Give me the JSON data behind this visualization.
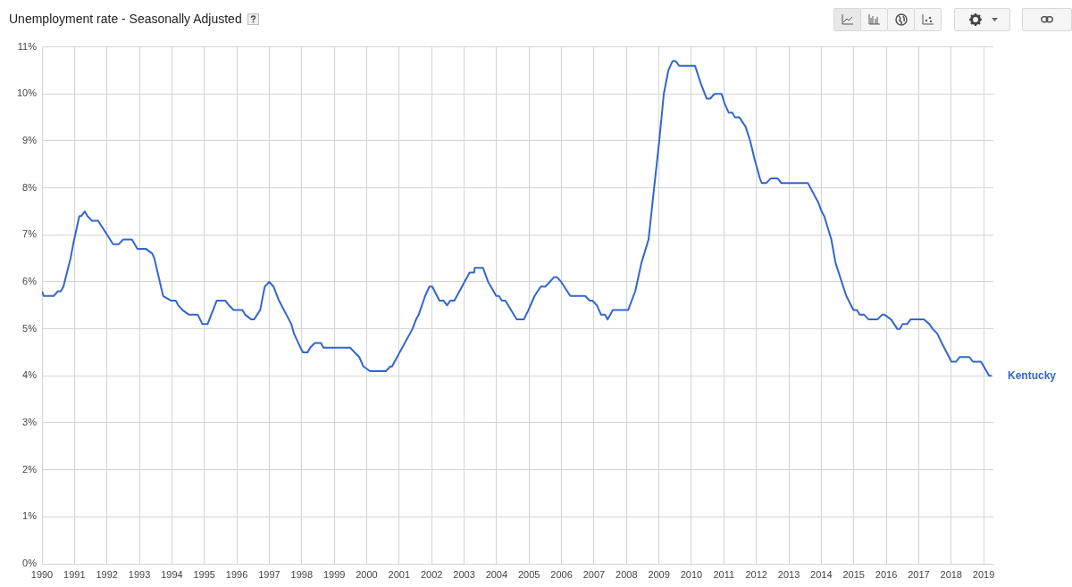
{
  "chart_data": {
    "type": "line",
    "title": "Unemployment rate - Seasonally Adjusted",
    "xlim": [
      1990,
      2019.3
    ],
    "xticks": [
      1990,
      1991,
      1992,
      1993,
      1994,
      1995,
      1996,
      1997,
      1998,
      1999,
      2000,
      2001,
      2002,
      2003,
      2004,
      2005,
      2006,
      2007,
      2008,
      2009,
      2010,
      2011,
      2012,
      2013,
      2014,
      2015,
      2016,
      2017,
      2018,
      2019
    ],
    "ylim": [
      0,
      11
    ],
    "yticks": [
      {
        "value": 0,
        "label": "0%"
      },
      {
        "value": 1,
        "label": "1%"
      },
      {
        "value": 2,
        "label": "2%"
      },
      {
        "value": 3,
        "label": "3%"
      },
      {
        "value": 4,
        "label": "4%"
      },
      {
        "value": 5,
        "label": "5%"
      },
      {
        "value": 6,
        "label": "6%"
      },
      {
        "value": 7,
        "label": "7%"
      },
      {
        "value": 8,
        "label": "8%"
      },
      {
        "value": 9,
        "label": "9%"
      },
      {
        "value": 10,
        "label": "10%"
      },
      {
        "value": 11,
        "label": "11%"
      }
    ],
    "grid": true,
    "marker": "none",
    "line_style": "solid",
    "series": [
      {
        "name": "Kentucky",
        "color": "#3366cc",
        "x": [
          1990.0,
          1990.05,
          1990.36,
          1990.49,
          1990.58,
          1990.66,
          1990.88,
          1990.96,
          1991.15,
          1991.21,
          1991.32,
          1991.4,
          1991.54,
          1991.73,
          1992.19,
          1992.36,
          1992.5,
          1992.77,
          1992.94,
          1993.21,
          1993.4,
          1993.46,
          1993.73,
          1993.98,
          1994.12,
          1994.2,
          1994.33,
          1994.53,
          1994.8,
          1994.94,
          1995.1,
          1995.38,
          1995.65,
          1995.76,
          1995.9,
          1996.17,
          1996.26,
          1996.45,
          1996.53,
          1996.72,
          1996.86,
          1997.0,
          1997.13,
          1997.3,
          1997.68,
          1997.76,
          1997.96,
          1998.04,
          1998.18,
          1998.26,
          1998.4,
          1998.59,
          1998.67,
          1999.49,
          1999.63,
          1999.77,
          1999.9,
          2000.1,
          2000.59,
          2000.73,
          2000.78,
          2001.41,
          2001.52,
          2001.6,
          2001.8,
          2001.93,
          2002.02,
          2002.24,
          2002.37,
          2002.48,
          2002.57,
          2002.7,
          2003.17,
          2003.31,
          2003.33,
          2003.58,
          2003.74,
          2003.99,
          2004.07,
          2004.16,
          2004.27,
          2004.62,
          2004.84,
          2004.98,
          2005.17,
          2005.36,
          2005.5,
          2005.64,
          2005.77,
          2005.86,
          2005.99,
          2006.27,
          2006.73,
          2006.87,
          2006.95,
          2007.09,
          2007.22,
          2007.34,
          2007.42,
          2007.58,
          2008.05,
          2008.27,
          2008.46,
          2008.68,
          2008.82,
          2009.01,
          2009.15,
          2009.29,
          2009.42,
          2009.51,
          2009.62,
          2010.11,
          2010.3,
          2010.47,
          2010.58,
          2010.71,
          2010.93,
          2011.02,
          2011.15,
          2011.26,
          2011.34,
          2011.48,
          2011.67,
          2011.81,
          2011.95,
          2012.11,
          2012.17,
          2012.3,
          2012.44,
          2012.66,
          2012.77,
          2013.59,
          2013.9,
          2014.01,
          2014.09,
          2014.31,
          2014.44,
          2014.77,
          2014.99,
          2015.1,
          2015.18,
          2015.32,
          2015.46,
          2015.73,
          2015.87,
          2015.95,
          2016.15,
          2016.34,
          2016.42,
          2016.5,
          2016.64,
          2016.75,
          2017.16,
          2017.33,
          2017.43,
          2017.57,
          2017.71,
          2018.01,
          2018.15,
          2018.26,
          2018.56,
          2018.67,
          2018.92,
          2019.17,
          2019.25
        ],
        "values": [
          5.8,
          5.7,
          5.7,
          5.8,
          5.8,
          5.9,
          6.5,
          6.8,
          7.4,
          7.4,
          7.5,
          7.4,
          7.3,
          7.3,
          6.8,
          6.8,
          6.9,
          6.9,
          6.7,
          6.7,
          6.6,
          6.5,
          5.7,
          5.6,
          5.6,
          5.5,
          5.4,
          5.3,
          5.3,
          5.1,
          5.1,
          5.6,
          5.6,
          5.5,
          5.4,
          5.4,
          5.3,
          5.2,
          5.2,
          5.4,
          5.9,
          6.0,
          5.9,
          5.6,
          5.1,
          4.9,
          4.6,
          4.5,
          4.5,
          4.6,
          4.7,
          4.7,
          4.6,
          4.6,
          4.5,
          4.4,
          4.2,
          4.1,
          4.1,
          4.2,
          4.2,
          5.0,
          5.2,
          5.3,
          5.7,
          5.9,
          5.9,
          5.6,
          5.6,
          5.5,
          5.6,
          5.6,
          6.2,
          6.2,
          6.3,
          6.3,
          6.0,
          5.7,
          5.7,
          5.6,
          5.6,
          5.2,
          5.2,
          5.4,
          5.7,
          5.9,
          5.9,
          6.0,
          6.1,
          6.1,
          6.0,
          5.7,
          5.7,
          5.6,
          5.6,
          5.5,
          5.3,
          5.3,
          5.2,
          5.4,
          5.4,
          5.8,
          6.4,
          6.9,
          7.8,
          9.0,
          10.0,
          10.5,
          10.7,
          10.7,
          10.6,
          10.6,
          10.2,
          9.9,
          9.9,
          10.0,
          10.0,
          9.8,
          9.6,
          9.6,
          9.5,
          9.5,
          9.3,
          9.0,
          8.6,
          8.2,
          8.1,
          8.1,
          8.2,
          8.2,
          8.1,
          8.1,
          7.7,
          7.5,
          7.4,
          6.9,
          6.4,
          5.7,
          5.4,
          5.4,
          5.3,
          5.3,
          5.2,
          5.2,
          5.3,
          5.3,
          5.2,
          5.0,
          5.0,
          5.1,
          5.1,
          5.2,
          5.2,
          5.1,
          5.0,
          4.9,
          4.7,
          4.3,
          4.3,
          4.4,
          4.4,
          4.3,
          4.3,
          4.0,
          4.0
        ]
      }
    ]
  }
}
